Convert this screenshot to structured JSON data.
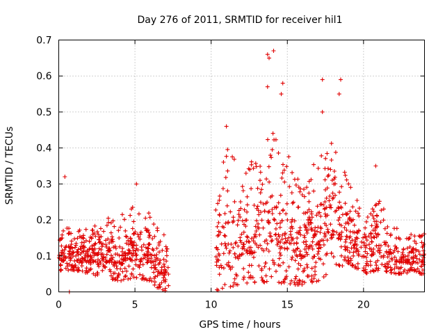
{
  "chart_data": {
    "type": "scatter",
    "title": "Day 276 of 2011, SRMTID for receiver hil1",
    "xlabel": "GPS time / hours",
    "ylabel": "SRMTID / TECUs",
    "xlim": [
      0,
      24
    ],
    "ylim": [
      0,
      0.7
    ],
    "xticks": [
      0,
      5,
      10,
      15,
      20
    ],
    "xtick_labels": [
      "0",
      "5",
      "10",
      "15",
      "20"
    ],
    "yticks": [
      0,
      0.1,
      0.2,
      0.3,
      0.4,
      0.5,
      0.6,
      0.7
    ],
    "ytick_labels": [
      "0",
      "0.1",
      "0.2",
      "0.3",
      "0.4",
      "0.5",
      "0.6",
      "0.7"
    ],
    "grid": true,
    "marker": "+",
    "series_color": "#e00000",
    "data_gap_hours": [
      7.2,
      10.3
    ],
    "notable_points": [
      {
        "x": 14.1,
        "y": 0.67
      },
      {
        "x": 13.7,
        "y": 0.66
      },
      {
        "x": 13.8,
        "y": 0.65
      },
      {
        "x": 17.3,
        "y": 0.59
      },
      {
        "x": 18.5,
        "y": 0.59
      },
      {
        "x": 14.7,
        "y": 0.58
      },
      {
        "x": 13.7,
        "y": 0.57
      },
      {
        "x": 14.6,
        "y": 0.55
      },
      {
        "x": 18.4,
        "y": 0.55
      },
      {
        "x": 17.3,
        "y": 0.5
      },
      {
        "x": 11.0,
        "y": 0.46
      },
      {
        "x": 0.4,
        "y": 0.32
      },
      {
        "x": 5.1,
        "y": 0.3
      },
      {
        "x": 20.8,
        "y": 0.35
      },
      {
        "x": 0.7,
        "y": 0.0
      }
    ],
    "envelope": [
      {
        "x": 0.0,
        "lo": 0.05,
        "hi": 0.14
      },
      {
        "x": 0.5,
        "lo": 0.06,
        "hi": 0.2
      },
      {
        "x": 1.0,
        "lo": 0.06,
        "hi": 0.17
      },
      {
        "x": 2.0,
        "lo": 0.05,
        "hi": 0.18
      },
      {
        "x": 3.0,
        "lo": 0.04,
        "hi": 0.22
      },
      {
        "x": 4.0,
        "lo": 0.03,
        "hi": 0.21
      },
      {
        "x": 5.0,
        "lo": 0.04,
        "hi": 0.25
      },
      {
        "x": 6.0,
        "lo": 0.03,
        "hi": 0.22
      },
      {
        "x": 6.5,
        "lo": 0.01,
        "hi": 0.2
      },
      {
        "x": 7.1,
        "lo": 0.0,
        "hi": 0.14
      },
      {
        "x": 10.4,
        "lo": 0.0,
        "hi": 0.29
      },
      {
        "x": 11.0,
        "lo": 0.01,
        "hi": 0.42
      },
      {
        "x": 12.0,
        "lo": 0.02,
        "hi": 0.33
      },
      {
        "x": 13.0,
        "lo": 0.02,
        "hi": 0.38
      },
      {
        "x": 14.0,
        "lo": 0.03,
        "hi": 0.45
      },
      {
        "x": 15.0,
        "lo": 0.02,
        "hi": 0.4
      },
      {
        "x": 16.0,
        "lo": 0.02,
        "hi": 0.3
      },
      {
        "x": 17.0,
        "lo": 0.03,
        "hi": 0.38
      },
      {
        "x": 18.0,
        "lo": 0.06,
        "hi": 0.42
      },
      {
        "x": 19.0,
        "lo": 0.08,
        "hi": 0.32
      },
      {
        "x": 20.0,
        "lo": 0.05,
        "hi": 0.22
      },
      {
        "x": 21.0,
        "lo": 0.06,
        "hi": 0.26
      },
      {
        "x": 22.0,
        "lo": 0.05,
        "hi": 0.18
      },
      {
        "x": 23.0,
        "lo": 0.05,
        "hi": 0.17
      },
      {
        "x": 24.0,
        "lo": 0.05,
        "hi": 0.17
      }
    ],
    "point_count": 1500
  }
}
